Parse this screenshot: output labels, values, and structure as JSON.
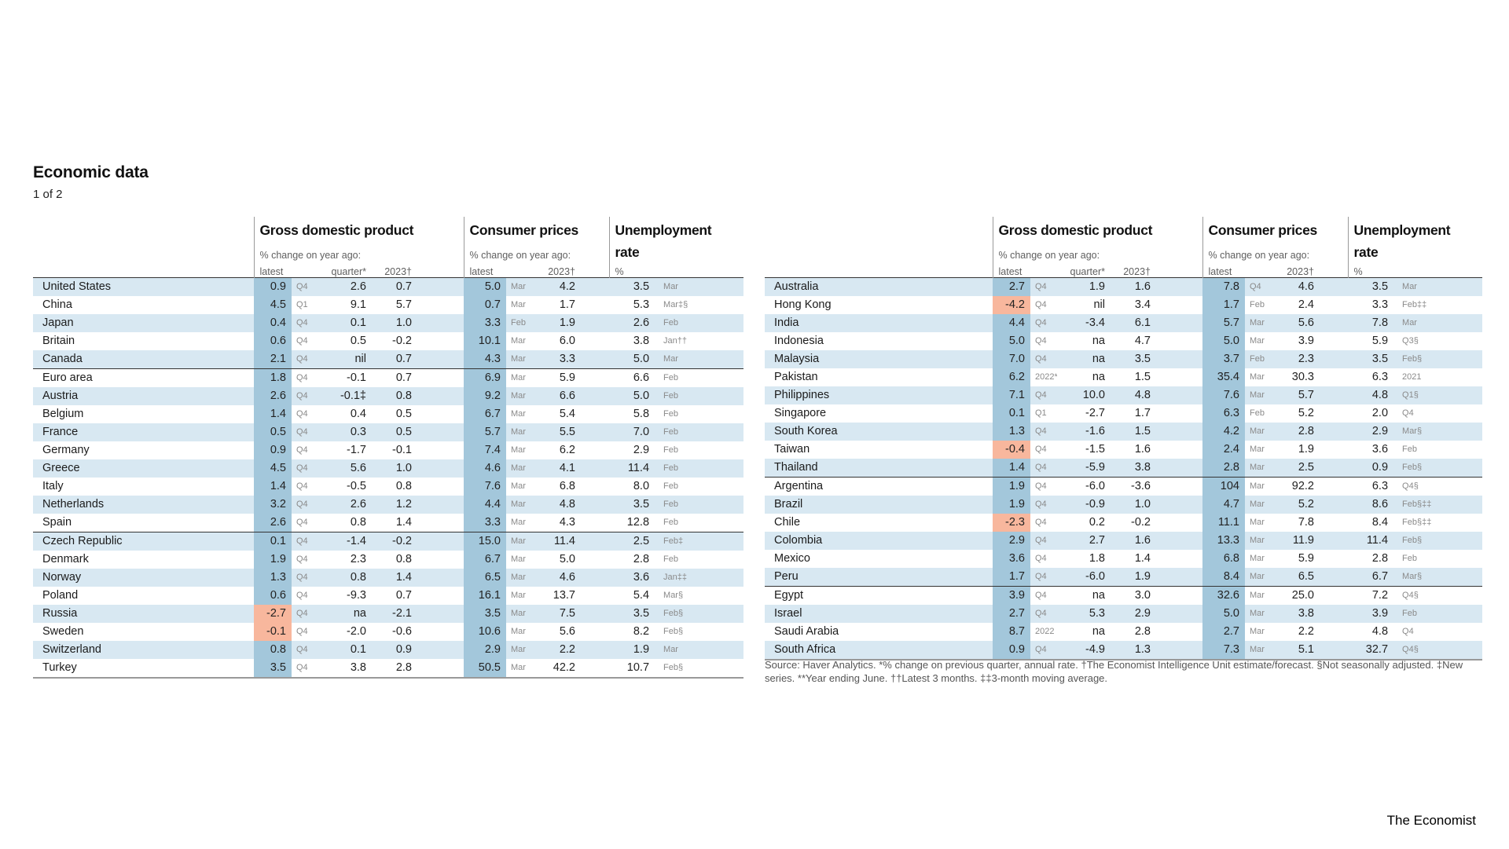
{
  "page": {
    "title": "Economic data",
    "subtitle": "1 of 2",
    "brand": "The Economist"
  },
  "colors": {
    "highlight_blue": "#a3c7db",
    "highlight_negative": "#f8b79d",
    "row_stripe": "#d8e8f2"
  },
  "columns": {
    "gdp": {
      "title": "Gross domestic product",
      "subtitle": "% change on year ago:",
      "latest": "latest",
      "quarter": "quarter*",
      "y2023": "2023†"
    },
    "cpi": {
      "title": "Consumer prices",
      "subtitle": "% change on year ago:",
      "latest": "latest",
      "y2023": "2023†"
    },
    "unemployment": {
      "title": "Unemployment",
      "title2": "rate",
      "pct": "%"
    }
  },
  "footnote": "Source: Haver Analytics.  *% change on previous quarter, annual rate. †The Economist Intelligence Unit estimate/forecast. §Not seasonally adjusted. ‡New series. **Year ending June. ††Latest 3 months. ‡‡3-month moving average.",
  "chart_data": [
    {
      "type": "table",
      "title": "Economic data (left panel)",
      "columns": [
        "country",
        "gdp_latest",
        "gdp_period",
        "gdp_quarter_annual_rate",
        "gdp_2023_forecast",
        "cpi_latest",
        "cpi_period",
        "cpi_2023_forecast",
        "unemployment_rate",
        "unemployment_period"
      ],
      "group_start_indices": [
        5,
        14
      ],
      "rows": [
        [
          "United States",
          "0.9",
          "Q4",
          "2.6",
          "0.7",
          "5.0",
          "Mar",
          "4.2",
          "3.5",
          "Mar"
        ],
        [
          "China",
          "4.5",
          "Q1",
          "9.1",
          "5.7",
          "0.7",
          "Mar",
          "1.7",
          "5.3",
          "Mar‡§"
        ],
        [
          "Japan",
          "0.4",
          "Q4",
          "0.1",
          "1.0",
          "3.3",
          "Feb",
          "1.9",
          "2.6",
          "Feb"
        ],
        [
          "Britain",
          "0.6",
          "Q4",
          "0.5",
          "-0.2",
          "10.1",
          "Mar",
          "6.0",
          "3.8",
          "Jan††"
        ],
        [
          "Canada",
          "2.1",
          "Q4",
          "nil",
          "0.7",
          "4.3",
          "Mar",
          "3.3",
          "5.0",
          "Mar"
        ],
        [
          "Euro area",
          "1.8",
          "Q4",
          "-0.1",
          "0.7",
          "6.9",
          "Mar",
          "5.9",
          "6.6",
          "Feb"
        ],
        [
          "Austria",
          "2.6",
          "Q4",
          "-0.1‡",
          "0.8",
          "9.2",
          "Mar",
          "6.6",
          "5.0",
          "Feb"
        ],
        [
          "Belgium",
          "1.4",
          "Q4",
          "0.4",
          "0.5",
          "6.7",
          "Mar",
          "5.4",
          "5.8",
          "Feb"
        ],
        [
          "France",
          "0.5",
          "Q4",
          "0.3",
          "0.5",
          "5.7",
          "Mar",
          "5.5",
          "7.0",
          "Feb"
        ],
        [
          "Germany",
          "0.9",
          "Q4",
          "-1.7",
          "-0.1",
          "7.4",
          "Mar",
          "6.2",
          "2.9",
          "Feb"
        ],
        [
          "Greece",
          "4.5",
          "Q4",
          "5.6",
          "1.0",
          "4.6",
          "Mar",
          "4.1",
          "11.4",
          "Feb"
        ],
        [
          "Italy",
          "1.4",
          "Q4",
          "-0.5",
          "0.8",
          "7.6",
          "Mar",
          "6.8",
          "8.0",
          "Feb"
        ],
        [
          "Netherlands",
          "3.2",
          "Q4",
          "2.6",
          "1.2",
          "4.4",
          "Mar",
          "4.8",
          "3.5",
          "Feb"
        ],
        [
          "Spain",
          "2.6",
          "Q4",
          "0.8",
          "1.4",
          "3.3",
          "Mar",
          "4.3",
          "12.8",
          "Feb"
        ],
        [
          "Czech Republic",
          "0.1",
          "Q4",
          "-1.4",
          "-0.2",
          "15.0",
          "Mar",
          "11.4",
          "2.5",
          "Feb‡"
        ],
        [
          "Denmark",
          "1.9",
          "Q4",
          "2.3",
          "0.8",
          "6.7",
          "Mar",
          "5.0",
          "2.8",
          "Feb"
        ],
        [
          "Norway",
          "1.3",
          "Q4",
          "0.8",
          "1.4",
          "6.5",
          "Mar",
          "4.6",
          "3.6",
          "Jan‡‡"
        ],
        [
          "Poland",
          "0.6",
          "Q4",
          "-9.3",
          "0.7",
          "16.1",
          "Mar",
          "13.7",
          "5.4",
          "Mar§"
        ],
        [
          "Russia",
          "-2.7",
          "Q4",
          "na",
          "-2.1",
          "3.5",
          "Mar",
          "7.5",
          "3.5",
          "Feb§"
        ],
        [
          "Sweden",
          "-0.1",
          "Q4",
          "-2.0",
          "-0.6",
          "10.6",
          "Mar",
          "5.6",
          "8.2",
          "Feb§"
        ],
        [
          "Switzerland",
          "0.8",
          "Q4",
          "0.1",
          "0.9",
          "2.9",
          "Mar",
          "2.2",
          "1.9",
          "Mar"
        ],
        [
          "Turkey",
          "3.5",
          "Q4",
          "3.8",
          "2.8",
          "50.5",
          "Mar",
          "42.2",
          "10.7",
          "Feb§"
        ]
      ]
    },
    {
      "type": "table",
      "title": "Economic data (right panel)",
      "columns": [
        "country",
        "gdp_latest",
        "gdp_period",
        "gdp_quarter_annual_rate",
        "gdp_2023_forecast",
        "cpi_latest",
        "cpi_period",
        "cpi_2023_forecast",
        "unemployment_rate",
        "unemployment_period"
      ],
      "group_start_indices": [
        11,
        17
      ],
      "rows": [
        [
          "Australia",
          "2.7",
          "Q4",
          "1.9",
          "1.6",
          "7.8",
          "Q4",
          "4.6",
          "3.5",
          "Mar"
        ],
        [
          "Hong Kong",
          "-4.2",
          "Q4",
          "nil",
          "3.4",
          "1.7",
          "Feb",
          "2.4",
          "3.3",
          "Feb‡‡"
        ],
        [
          "India",
          "4.4",
          "Q4",
          "-3.4",
          "6.1",
          "5.7",
          "Mar",
          "5.6",
          "7.8",
          "Mar"
        ],
        [
          "Indonesia",
          "5.0",
          "Q4",
          "na",
          "4.7",
          "5.0",
          "Mar",
          "3.9",
          "5.9",
          "Q3§"
        ],
        [
          "Malaysia",
          "7.0",
          "Q4",
          "na",
          "3.5",
          "3.7",
          "Feb",
          "2.3",
          "3.5",
          "Feb§"
        ],
        [
          "Pakistan",
          "6.2",
          "2022**",
          "na",
          "1.5",
          "35.4",
          "Mar",
          "30.3",
          "6.3",
          "2021"
        ],
        [
          "Philippines",
          "7.1",
          "Q4",
          "10.0",
          "4.8",
          "7.6",
          "Mar",
          "5.7",
          "4.8",
          "Q1§"
        ],
        [
          "Singapore",
          "0.1",
          "Q1",
          "-2.7",
          "1.7",
          "6.3",
          "Feb",
          "5.2",
          "2.0",
          "Q4"
        ],
        [
          "South Korea",
          "1.3",
          "Q4",
          "-1.6",
          "1.5",
          "4.2",
          "Mar",
          "2.8",
          "2.9",
          "Mar§"
        ],
        [
          "Taiwan",
          "-0.4",
          "Q4",
          "-1.5",
          "1.6",
          "2.4",
          "Mar",
          "1.9",
          "3.6",
          "Feb"
        ],
        [
          "Thailand",
          "1.4",
          "Q4",
          "-5.9",
          "3.8",
          "2.8",
          "Mar",
          "2.5",
          "0.9",
          "Feb§"
        ],
        [
          "Argentina",
          "1.9",
          "Q4",
          "-6.0",
          "-3.6",
          "104",
          "Mar",
          "92.2",
          "6.3",
          "Q4§"
        ],
        [
          "Brazil",
          "1.9",
          "Q4",
          "-0.9",
          "1.0",
          "4.7",
          "Mar",
          "5.2",
          "8.6",
          "Feb§‡‡"
        ],
        [
          "Chile",
          "-2.3",
          "Q4",
          "0.2",
          "-0.2",
          "11.1",
          "Mar",
          "7.8",
          "8.4",
          "Feb§‡‡"
        ],
        [
          "Colombia",
          "2.9",
          "Q4",
          "2.7",
          "1.6",
          "13.3",
          "Mar",
          "11.9",
          "11.4",
          "Feb§"
        ],
        [
          "Mexico",
          "3.6",
          "Q4",
          "1.8",
          "1.4",
          "6.8",
          "Mar",
          "5.9",
          "2.8",
          "Feb"
        ],
        [
          "Peru",
          "1.7",
          "Q4",
          "-6.0",
          "1.9",
          "8.4",
          "Mar",
          "6.5",
          "6.7",
          "Mar§"
        ],
        [
          "Egypt",
          "3.9",
          "Q4",
          "na",
          "3.0",
          "32.6",
          "Mar",
          "25.0",
          "7.2",
          "Q4§"
        ],
        [
          "Israel",
          "2.7",
          "Q4",
          "5.3",
          "2.9",
          "5.0",
          "Mar",
          "3.8",
          "3.9",
          "Feb"
        ],
        [
          "Saudi Arabia",
          "8.7",
          "2022",
          "na",
          "2.8",
          "2.7",
          "Mar",
          "2.2",
          "4.8",
          "Q4"
        ],
        [
          "South Africa",
          "0.9",
          "Q4",
          "-4.9",
          "1.3",
          "7.3",
          "Mar",
          "5.1",
          "32.7",
          "Q4§"
        ]
      ]
    }
  ]
}
